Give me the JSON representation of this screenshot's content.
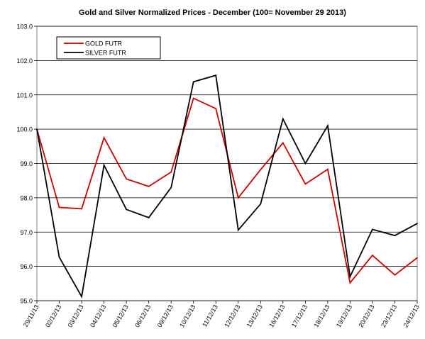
{
  "chart_data": {
    "type": "line",
    "title": "Gold and Silver Normalized Prices - December  (100= November 29 2013)",
    "xlabel": "",
    "ylabel": "",
    "categories": [
      "29/11/13",
      "02/12/13",
      "03/12/13",
      "04/12/13",
      "05/12/13",
      "06/12/13",
      "09/12/13",
      "10/12/13",
      "11/12/13",
      "12/12/13",
      "13/12/13",
      "16/12/13",
      "17/12/13",
      "18/12/13",
      "19/12/13",
      "20/12/13",
      "23/12/13",
      "24/12/13"
    ],
    "ylim": [
      95.0,
      103.0
    ],
    "yticks": [
      "95.0",
      "96.0",
      "97.0",
      "98.0",
      "99.0",
      "100.0",
      "101.0",
      "102.0",
      "103.0"
    ],
    "grid": "horizontal",
    "legend_position": "top-left",
    "series": [
      {
        "name": "GOLD  FUTR",
        "color": "#cc0000",
        "values": [
          100.0,
          97.72,
          97.68,
          99.75,
          98.55,
          98.33,
          98.75,
          100.9,
          100.6,
          98.0,
          98.82,
          99.6,
          98.4,
          98.83,
          95.52,
          96.32,
          95.75,
          96.25
        ]
      },
      {
        "name": "SILVER  FUTR",
        "color": "#000000",
        "values": [
          100.0,
          96.27,
          95.12,
          98.95,
          97.66,
          97.42,
          98.3,
          101.38,
          101.57,
          97.06,
          97.82,
          100.3,
          99.0,
          100.1,
          95.7,
          97.08,
          96.9,
          97.25
        ]
      }
    ]
  }
}
